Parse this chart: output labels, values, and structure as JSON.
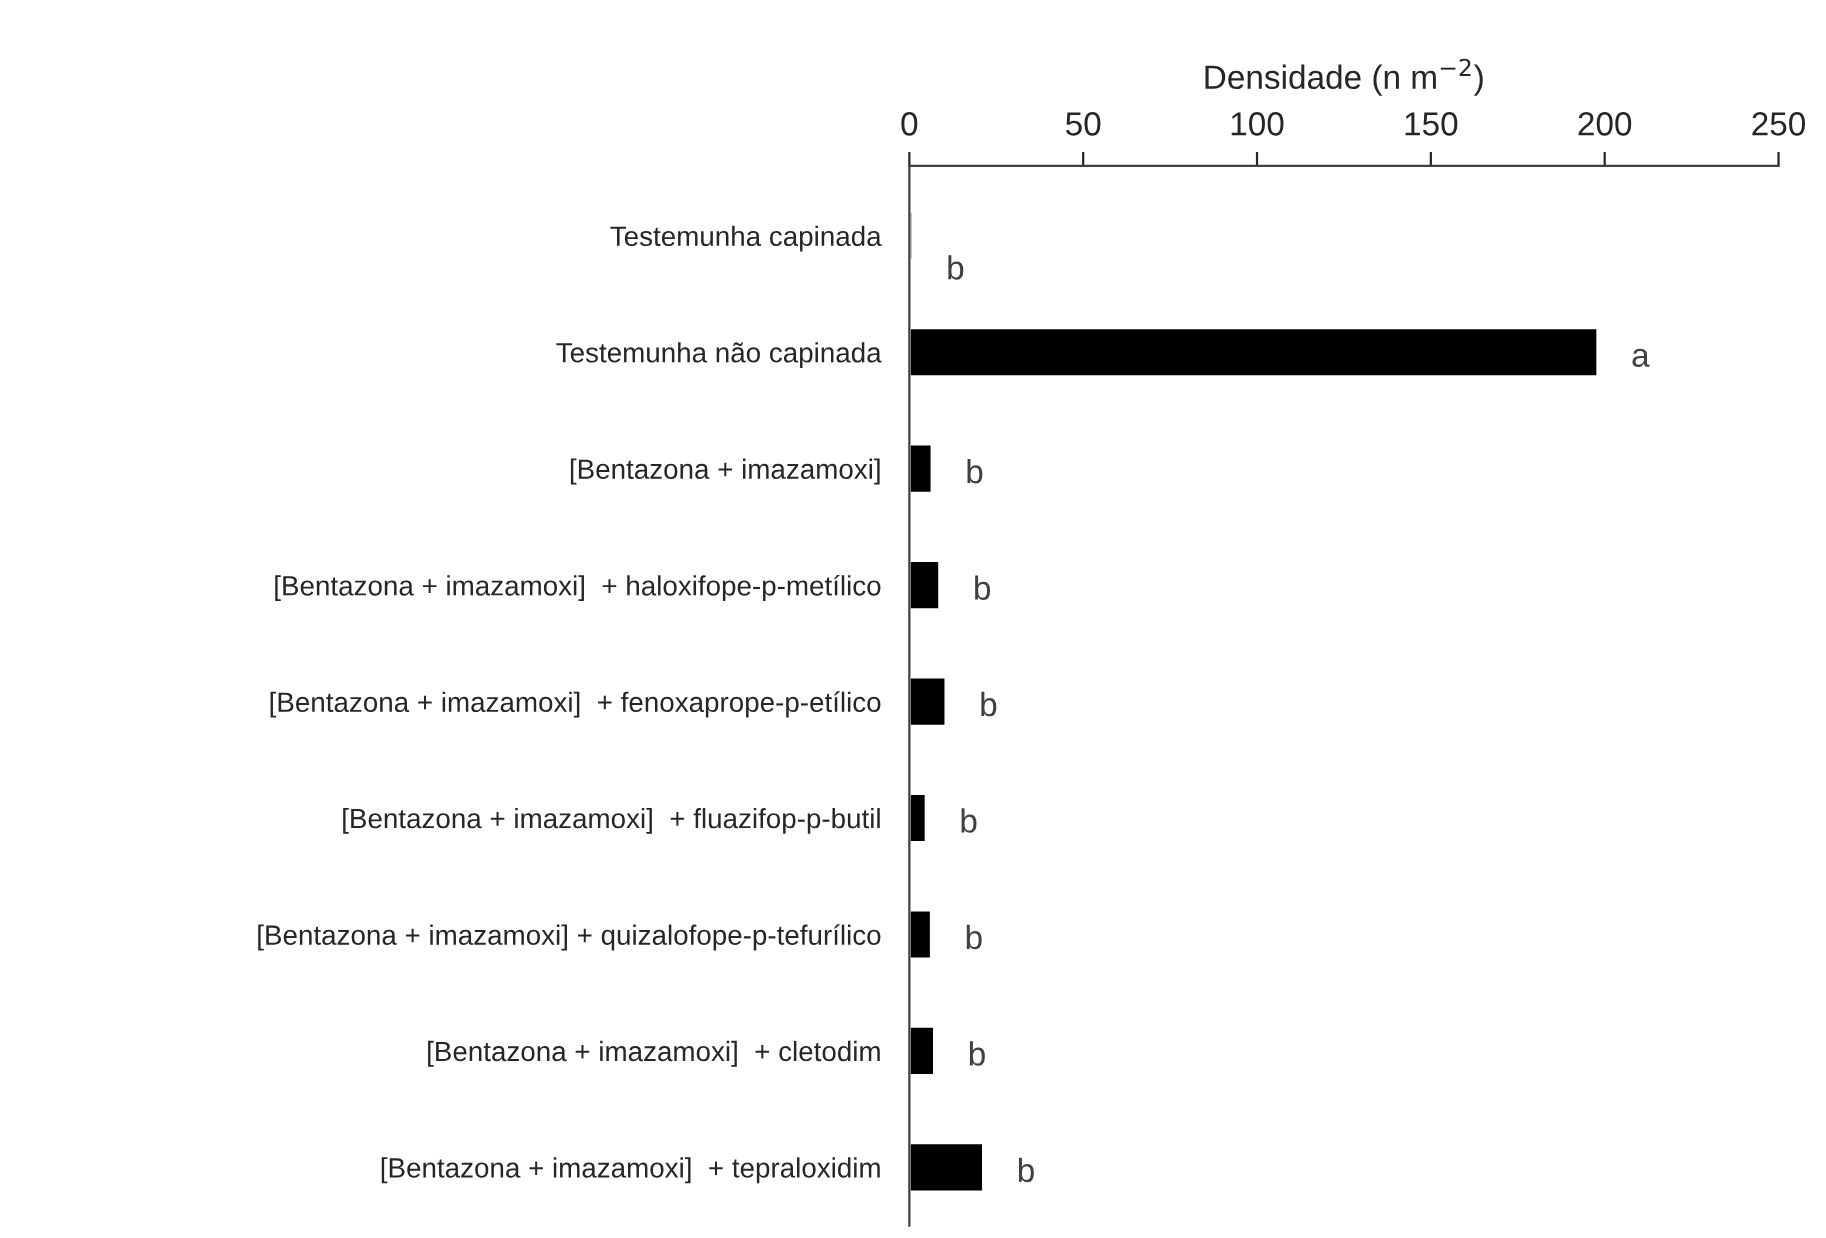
{
  "chart_data": {
    "type": "bar",
    "orientation": "horizontal",
    "xlabel": "Densidade (n m$^{−2}$)",
    "categories": [
      "Testemunha capinada",
      "Testemunha não capinada",
      "[Bentazona + imazamoxi]",
      "[Bentazona + imazamoxi]  + haloxifope-p-metílico",
      "[Bentazona + imazamoxi]  + fenoxaprope-p-etílico",
      "[Bentazona + imazamoxi]  + fluazifop-p-butil",
      "[Bentazona + imazamoxi] + quizalofope-p-tefurílico",
      "[Bentazona + imazamoxi]  + cletodim",
      "[Bentazona + imazamoxi]  + tepraloxidim"
    ],
    "values": [
      1,
      198,
      6.5,
      8.7,
      10.5,
      4.8,
      6.3,
      7.2,
      21.3
    ],
    "colors": [
      "#4472c4",
      "#000000",
      "#000000",
      "#000000",
      "#000000",
      "#000000",
      "#000000",
      "#000000",
      "#000000"
    ],
    "value_labels": [
      "b",
      "a",
      "b",
      "b",
      "b",
      "b",
      "b",
      "b",
      "b"
    ],
    "xlim": [
      0,
      250
    ],
    "xticks": [
      0,
      50,
      100,
      150,
      200,
      250
    ],
    "grid": false,
    "legend": false
  }
}
